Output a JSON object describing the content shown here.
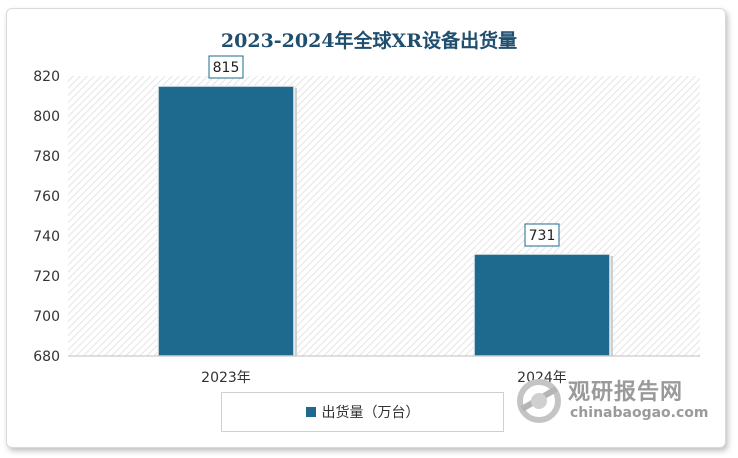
{
  "chart_data": {
    "type": "bar",
    "title": "2023-2024年全球XR设备出货量",
    "categories": [
      "2023年",
      "2024年"
    ],
    "series": [
      {
        "name": "出货量（万台）",
        "values": [
          815,
          731
        ]
      }
    ],
    "ylim": [
      680,
      820
    ],
    "yticks": [
      680,
      700,
      720,
      740,
      760,
      780,
      800,
      820
    ],
    "grid": false,
    "legend_position": "bottom",
    "bar_color": "#1e6a8e",
    "data_labels": [
      "815",
      "731"
    ]
  },
  "watermark": {
    "cn_text": "观研报告网",
    "en_text": "chinabaogao.com"
  }
}
